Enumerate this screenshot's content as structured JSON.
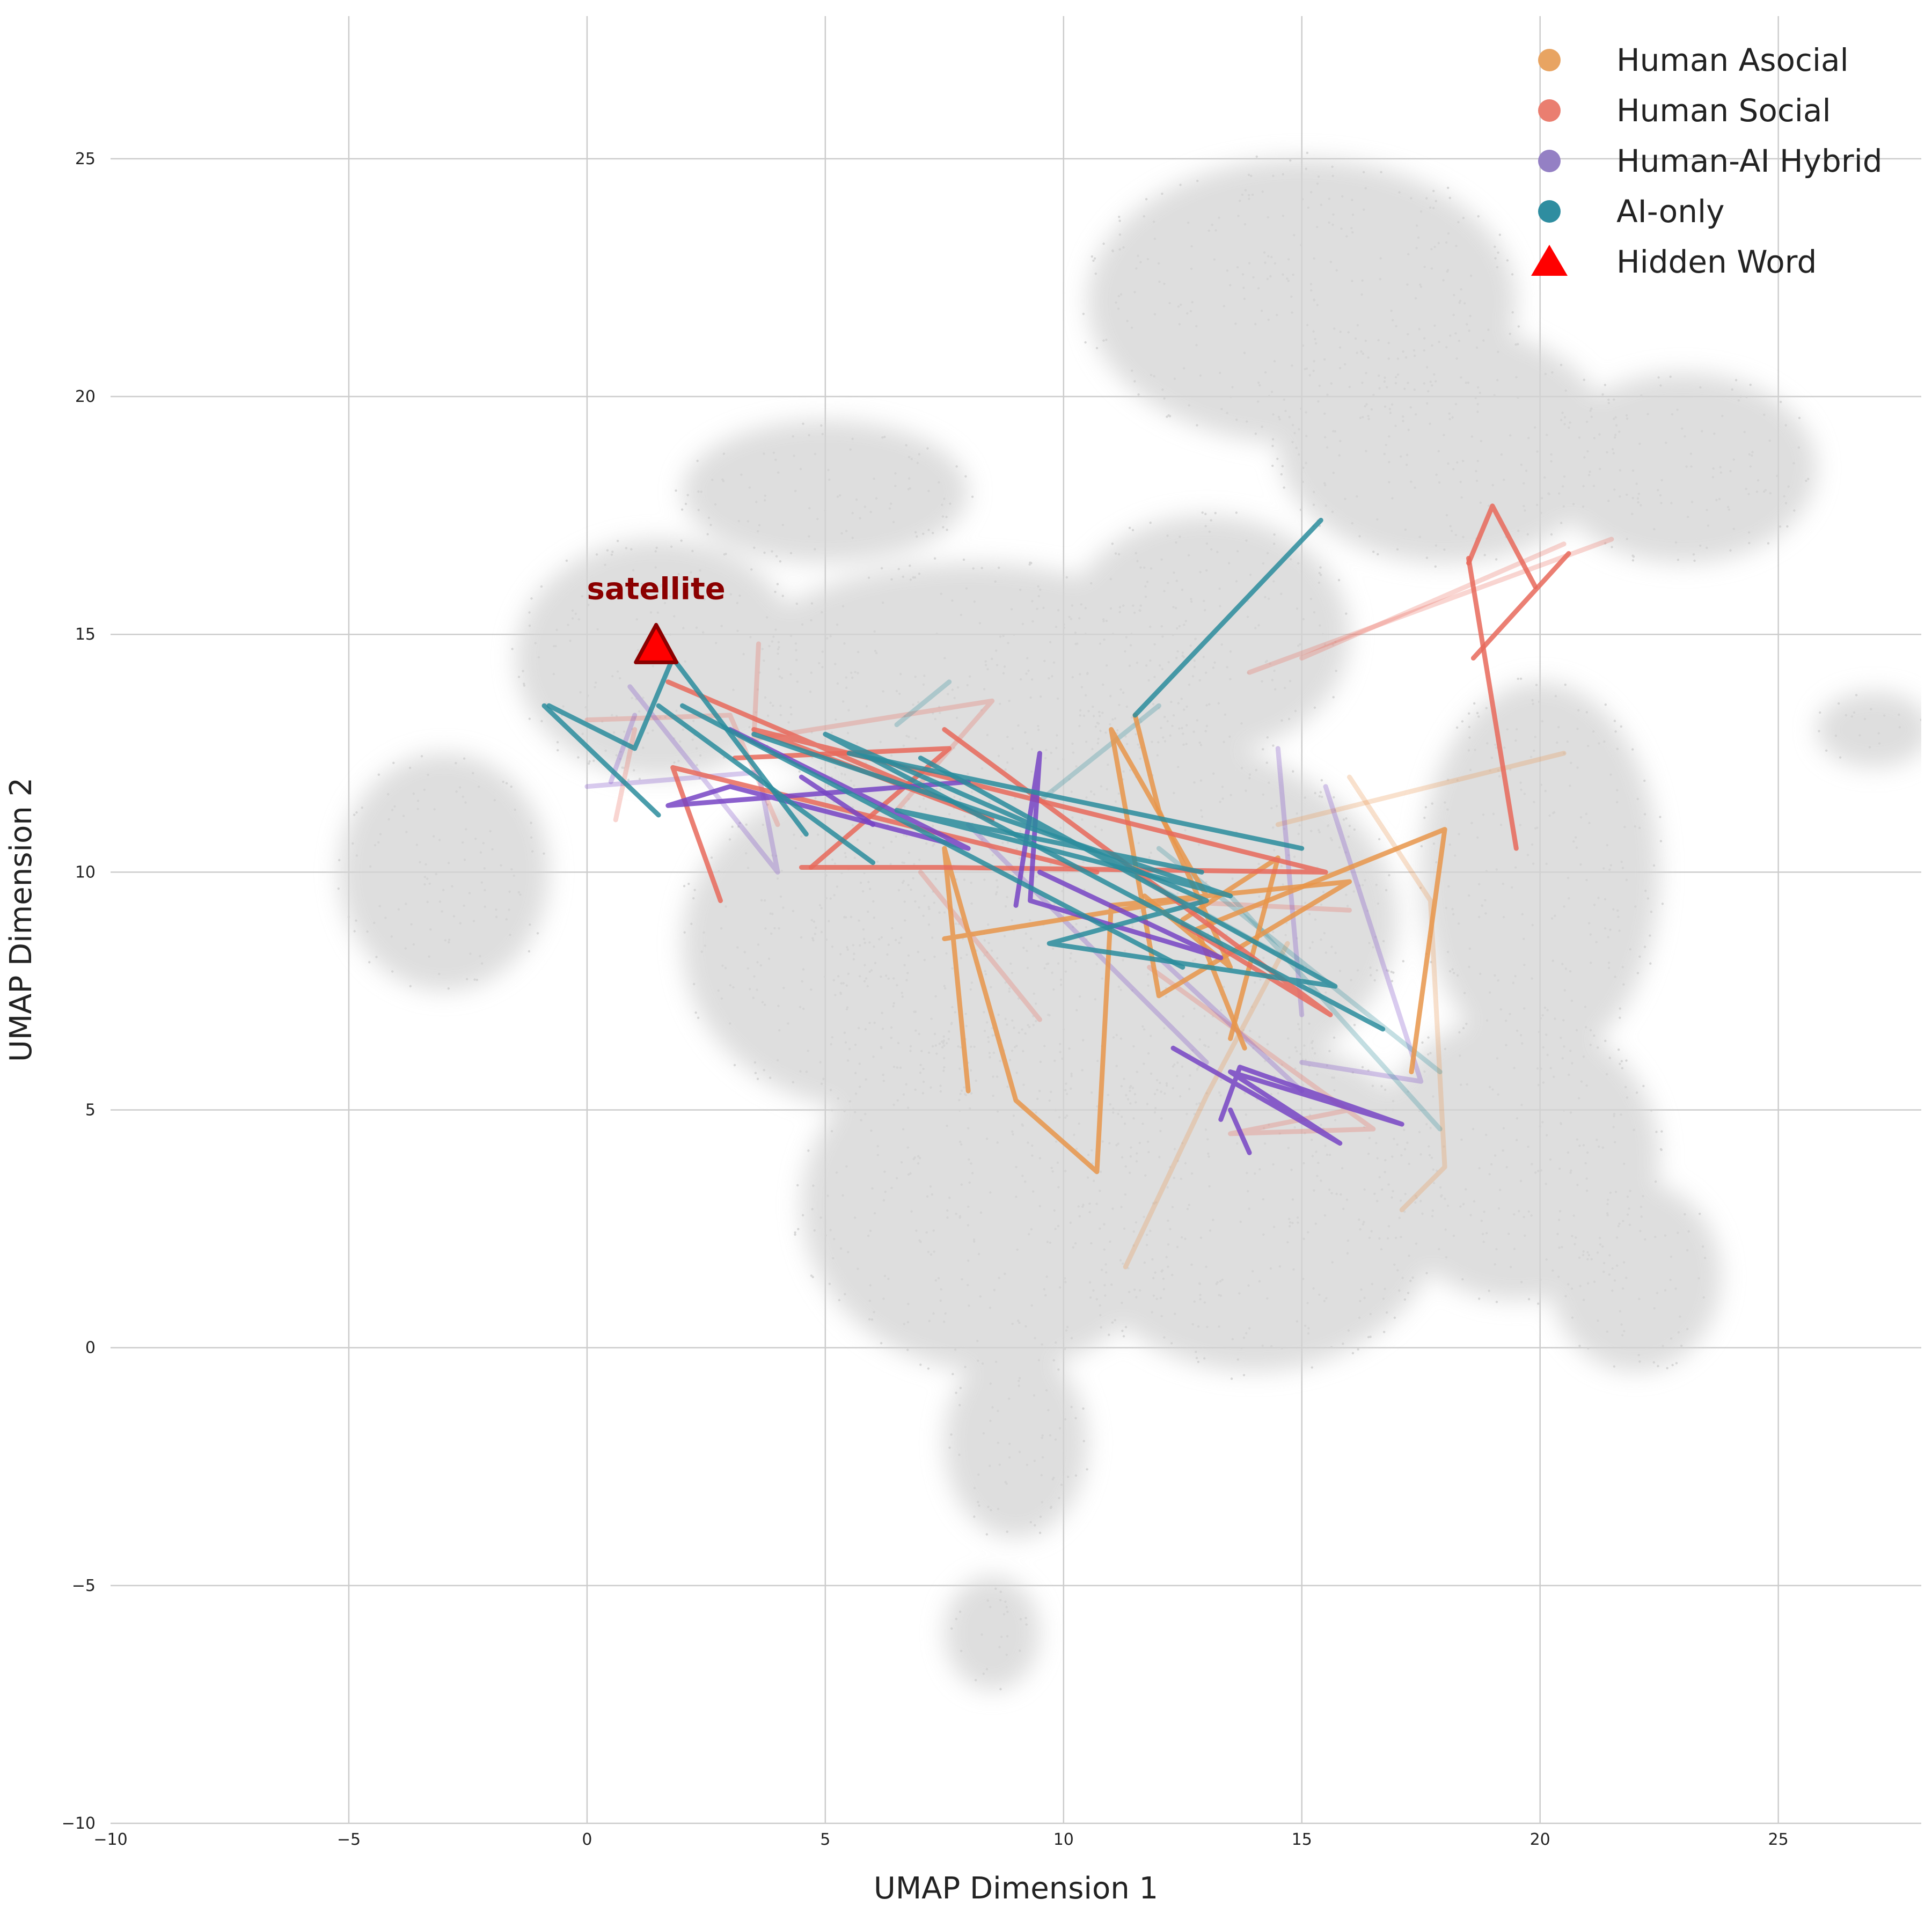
{
  "chart_data": {
    "type": "line",
    "title": "",
    "xlabel": "UMAP Dimension 1",
    "ylabel": "UMAP Dimension 2",
    "xlim": [
      -10,
      28
    ],
    "ylim": [
      -10,
      28
    ],
    "xticks": [
      -10,
      -5,
      0,
      5,
      10,
      15,
      20,
      25
    ],
    "yticks": [
      -10,
      -5,
      0,
      5,
      10,
      15,
      20,
      25
    ],
    "xtick_labels": [
      "−10",
      "−5",
      "0",
      "5",
      "10",
      "15",
      "20",
      "25"
    ],
    "ytick_labels": [
      "−10",
      "−5",
      "0",
      "5",
      "10",
      "15",
      "20",
      "25"
    ],
    "grid": true,
    "legend_position": "top-right",
    "background_cloud_color": "#d3d3d3",
    "background_cloud": [
      {
        "x": 1.5,
        "y": 14.5,
        "rx": 3.0,
        "ry": 2.5
      },
      {
        "x": -3.0,
        "y": 10.0,
        "rx": 2.2,
        "ry": 2.5
      },
      {
        "x": 5.0,
        "y": 18.0,
        "rx": 3.0,
        "ry": 1.5
      },
      {
        "x": 8.0,
        "y": 14.0,
        "rx": 5.0,
        "ry": 2.5
      },
      {
        "x": 6.0,
        "y": 8.5,
        "rx": 4.0,
        "ry": 3.5
      },
      {
        "x": 11.0,
        "y": 9.0,
        "rx": 6.0,
        "ry": 4.0
      },
      {
        "x": 8.5,
        "y": 3.0,
        "rx": 4.0,
        "ry": 3.5
      },
      {
        "x": 14.0,
        "y": 3.0,
        "rx": 4.0,
        "ry": 3.5
      },
      {
        "x": 15.0,
        "y": 22.0,
        "rx": 4.5,
        "ry": 3.0
      },
      {
        "x": 18.0,
        "y": 19.0,
        "rx": 3.5,
        "ry": 2.5
      },
      {
        "x": 23.0,
        "y": 18.5,
        "rx": 2.8,
        "ry": 2.0
      },
      {
        "x": 20.0,
        "y": 10.0,
        "rx": 2.5,
        "ry": 4.0
      },
      {
        "x": 19.5,
        "y": 4.0,
        "rx": 3.0,
        "ry": 3.0
      },
      {
        "x": 13.0,
        "y": 15.0,
        "rx": 3.0,
        "ry": 2.5
      },
      {
        "x": 9.0,
        "y": -2.0,
        "rx": 1.5,
        "ry": 2.0
      },
      {
        "x": 8.5,
        "y": -6.0,
        "rx": 1.0,
        "ry": 1.2
      },
      {
        "x": 27.0,
        "y": 13.0,
        "rx": 1.2,
        "ry": 0.8
      },
      {
        "x": 22.0,
        "y": 1.5,
        "rx": 1.8,
        "ry": 2.0
      }
    ],
    "series": [
      {
        "name": "Human Asocial",
        "color": "#e8954a",
        "paths": [
          [
            [
              7.5,
              8.6
            ],
            [
              13.0,
              9.5
            ],
            [
              11.0,
              13.0
            ],
            [
              12.0,
              7.4
            ],
            [
              16.0,
              9.8
            ],
            [
              11.0,
              9.3
            ],
            [
              10.7,
              3.7
            ],
            [
              9.0,
              5.2
            ],
            [
              7.5,
              10.5
            ],
            [
              8.0,
              5.4
            ]
          ],
          [
            [
              11.5,
              13.3
            ],
            [
              12.0,
              11.3
            ],
            [
              13.5,
              8.0
            ],
            [
              11.7,
              9.5
            ]
          ],
          [
            [
              13.8,
              6.3
            ],
            [
              12.8,
              8.8
            ],
            [
              18.0,
              10.9
            ],
            [
              17.3,
              5.8
            ]
          ],
          [
            [
              12.5,
              9.0
            ],
            [
              14.5,
              10.3
            ],
            [
              13.5,
              6.5
            ]
          ]
        ],
        "faint_paths": [
          [
            [
              16.0,
              12.0
            ],
            [
              17.7,
              9.4
            ],
            [
              18.0,
              3.8
            ],
            [
              17.1,
              2.9
            ]
          ],
          [
            [
              11.3,
              1.7
            ],
            [
              13.0,
              5.3
            ],
            [
              14.7,
              8.5
            ]
          ],
          [
            [
              14.5,
              11.0
            ],
            [
              20.5,
              12.5
            ]
          ]
        ]
      },
      {
        "name": "Human Social",
        "color": "#e8695a",
        "paths": [
          [
            [
              1.7,
              14.0
            ],
            [
              8.5,
              11.1
            ],
            [
              3.5,
              13.0
            ],
            [
              15.5,
              10.0
            ],
            [
              7.4,
              10.1
            ],
            [
              4.5,
              10.1
            ]
          ],
          [
            [
              18.5,
              16.6
            ],
            [
              19.5,
              10.5
            ]
          ],
          [
            [
              18.6,
              14.5
            ],
            [
              20.6,
              16.7
            ]
          ],
          [
            [
              18.5,
              16.5
            ],
            [
              19.0,
              17.7
            ],
            [
              19.9,
              16.0
            ]
          ],
          [
            [
              2.8,
              9.4
            ],
            [
              1.8,
              12.2
            ],
            [
              10.7,
              10.0
            ]
          ],
          [
            [
              7.5,
              13.0
            ],
            [
              15.6,
              7.0
            ],
            [
              12.5,
              8.9
            ]
          ],
          [
            [
              4.7,
              10.1
            ],
            [
              7.6,
              12.6
            ],
            [
              3.1,
              12.4
            ]
          ]
        ],
        "faint_paths": [
          [
            [
              0.0,
              13.2
            ],
            [
              3.0,
              13.3
            ],
            [
              4.0,
              11.0
            ]
          ],
          [
            [
              3.6,
              14.8
            ],
            [
              3.5,
              12.8
            ],
            [
              8.5,
              13.6
            ],
            [
              6.5,
              11.3
            ]
          ],
          [
            [
              0.6,
              11.1
            ],
            [
              1.0,
              13.0
            ]
          ],
          [
            [
              7.0,
              10.0
            ],
            [
              9.5,
              6.9
            ]
          ],
          [
            [
              11.8,
              8.0
            ],
            [
              16.5,
              4.6
            ],
            [
              13.5,
              4.5
            ],
            [
              16.0,
              5.0
            ]
          ],
          [
            [
              13.9,
              14.2
            ],
            [
              21.5,
              17.0
            ]
          ],
          [
            [
              15.0,
              14.5
            ],
            [
              20.5,
              16.9
            ]
          ],
          [
            [
              12.0,
              9.4
            ],
            [
              16.0,
              9.2
            ]
          ]
        ]
      },
      {
        "name": "Human-AI Hybrid",
        "color": "#7744c4",
        "paths": [
          [
            [
              3.0,
              13.0
            ],
            [
              8.0,
              10.5
            ],
            [
              3.0,
              11.8
            ],
            [
              1.7,
              11.4
            ],
            [
              8.0,
              11.9
            ]
          ],
          [
            [
              9.0,
              9.3
            ],
            [
              9.5,
              12.5
            ],
            [
              9.3,
              9.4
            ],
            [
              13.3,
              8.2
            ],
            [
              9.5,
              10.0
            ]
          ],
          [
            [
              12.3,
              6.3
            ],
            [
              15.8,
              4.3
            ],
            [
              13.5,
              5.8
            ],
            [
              17.1,
              4.7
            ],
            [
              13.7,
              5.9
            ],
            [
              13.3,
              4.8
            ]
          ],
          [
            [
              13.5,
              5.0
            ],
            [
              13.9,
              4.1
            ]
          ],
          [
            [
              4.5,
              12.0
            ],
            [
              6.0,
              11.0
            ]
          ]
        ],
        "faint_paths": [
          [
            [
              0.9,
              13.9
            ],
            [
              4.0,
              10.0
            ],
            [
              3.6,
              12.1
            ],
            [
              0.0,
              11.8
            ]
          ],
          [
            [
              0.5,
              11.9
            ],
            [
              1.0,
              13.3
            ]
          ],
          [
            [
              15.5,
              11.8
            ],
            [
              17.5,
              5.6
            ],
            [
              15.0,
              6.0
            ]
          ],
          [
            [
              14.5,
              12.6
            ],
            [
              15.0,
              7.0
            ]
          ],
          [
            [
              12.0,
              8.2
            ],
            [
              15.0,
              5.4
            ]
          ],
          [
            [
              8.0,
              11.0
            ],
            [
              13.0,
              6.0
            ]
          ]
        ]
      },
      {
        "name": "AI-only",
        "color": "#2a8c9c",
        "paths": [
          [
            [
              -0.9,
              13.5
            ],
            [
              1.5,
              11.2
            ]
          ],
          [
            [
              -0.8,
              13.5
            ],
            [
              1.0,
              12.6
            ],
            [
              1.8,
              14.5
            ],
            [
              4.6,
              10.8
            ]
          ],
          [
            [
              1.5,
              13.5
            ],
            [
              6.0,
              10.2
            ]
          ],
          [
            [
              11.5,
              13.3
            ],
            [
              15.4,
              17.4
            ]
          ],
          [
            [
              7.0,
              12.4
            ],
            [
              15.7,
              7.6
            ],
            [
              9.7,
              8.5
            ],
            [
              13.0,
              9.4
            ],
            [
              5.0,
              12.9
            ],
            [
              16.7,
              6.7
            ]
          ],
          [
            [
              3.5,
              12.9
            ],
            [
              13.5,
              9.5
            ],
            [
              6.5,
              11.3
            ],
            [
              12.9,
              10.0
            ]
          ],
          [
            [
              2.0,
              13.5
            ],
            [
              12.5,
              8.0
            ]
          ],
          [
            [
              5.5,
              12.5
            ],
            [
              15.0,
              10.5
            ]
          ]
        ],
        "faint_paths": [
          [
            [
              6.5,
              13.1
            ],
            [
              7.6,
              14.0
            ]
          ],
          [
            [
              9.5,
              11.5
            ],
            [
              12.0,
              13.5
            ]
          ],
          [
            [
              12.0,
              10.5
            ],
            [
              17.9,
              5.8
            ]
          ],
          [
            [
              13.5,
              9.5
            ],
            [
              17.9,
              4.6
            ]
          ],
          [
            [
              10.5,
              10.5
            ],
            [
              15.0,
              8.0
            ]
          ]
        ]
      }
    ],
    "hidden_word": {
      "label": "satellite",
      "x": 1.45,
      "y": 14.75,
      "color": "#ff0000",
      "edge_color": "#8b0000"
    },
    "legend": [
      {
        "label": "Human Asocial",
        "marker": "circle",
        "color": "#e8a462"
      },
      {
        "label": "Human Social",
        "marker": "circle",
        "color": "#ea7e70"
      },
      {
        "label": "Human-AI Hybrid",
        "marker": "circle",
        "color": "#9480c4"
      },
      {
        "label": "AI-only",
        "marker": "circle",
        "color": "#2e8da0"
      },
      {
        "label": "Hidden Word",
        "marker": "triangle",
        "color": "#ff0000"
      }
    ]
  }
}
